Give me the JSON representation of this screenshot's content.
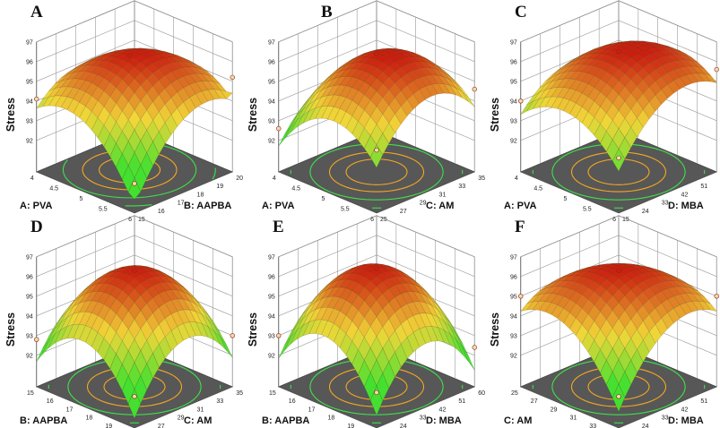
{
  "colors": {
    "floor": "#575757",
    "surface_low": "#43e030",
    "surface_mid": "#f2d638",
    "surface_high": "#cc1e10",
    "contour_green": "#3fe04a",
    "contour_orange": "#f5a81f",
    "contour_red": "#d92a1f"
  },
  "chart_data": [
    {
      "panel": "A",
      "type": "surface",
      "zlabel": "Stress",
      "zticks": [
        "92",
        "93",
        "94",
        "95",
        "96",
        "97"
      ],
      "zlim": [
        92,
        97
      ],
      "xlabel": "A:  PVA",
      "xticks": [
        "4",
        "4.5",
        "5",
        "5.5",
        "6"
      ],
      "ylabel": "B:  AAPBA",
      "yticks": [
        "15",
        "16",
        "17",
        "18",
        "19",
        "20"
      ],
      "peak": 96.2,
      "corners": [
        94.1,
        91.9,
        95.2,
        93.0
      ],
      "center": [
        0.55,
        0.5
      ]
    },
    {
      "panel": "B",
      "type": "surface",
      "zlabel": "Stress",
      "zticks": [
        "92",
        "93",
        "94",
        "95",
        "96",
        "97"
      ],
      "zlim": [
        92,
        97
      ],
      "xlabel": "A:  PVA",
      "xticks": [
        "4",
        "4.5",
        "5",
        "5.5",
        "6"
      ],
      "ylabel": "C:  AM",
      "yticks": [
        "25",
        "27",
        "29",
        "31",
        "33",
        "35"
      ],
      "peak": 96.4,
      "corners": [
        92.6,
        93.6,
        94.6,
        93.0
      ],
      "center": [
        0.5,
        0.5
      ]
    },
    {
      "panel": "C",
      "type": "surface",
      "zlabel": "Stress",
      "zticks": [
        "92",
        "93",
        "94",
        "95",
        "96",
        "97"
      ],
      "zlim": [
        92,
        97
      ],
      "xlabel": "A:  PVA",
      "xticks": [
        "4",
        "4.5",
        "5",
        "5.5",
        "6"
      ],
      "ylabel": "D:  MBA",
      "yticks": [
        "15",
        "24",
        "33",
        "42",
        "51",
        "60"
      ],
      "peak": 96.5,
      "corners": [
        94.0,
        93.2,
        95.6,
        94.2
      ],
      "center": [
        0.5,
        0.5
      ]
    },
    {
      "panel": "D",
      "type": "surface",
      "zlabel": "Stress",
      "zticks": [
        "92",
        "93",
        "94",
        "95",
        "96",
        "97"
      ],
      "zlim": [
        92,
        97
      ],
      "xlabel": "B:  AAPBA",
      "xticks": [
        "15",
        "16",
        "17",
        "18",
        "19",
        "20"
      ],
      "ylabel": "C:  AM",
      "yticks": [
        "25",
        "27",
        "29",
        "31",
        "33",
        "35"
      ],
      "peak": 96.3,
      "corners": [
        92.8,
        92.0,
        93.0,
        92.5
      ],
      "center": [
        0.5,
        0.5
      ]
    },
    {
      "panel": "E",
      "type": "surface",
      "zlabel": "Stress",
      "zticks": [
        "92",
        "93",
        "94",
        "95",
        "96",
        "97"
      ],
      "zlim": [
        92,
        97
      ],
      "xlabel": "B:  AAPBA",
      "xticks": [
        "15",
        "16",
        "17",
        "18",
        "19",
        "20"
      ],
      "ylabel": "D:  MBA",
      "yticks": [
        "15",
        "24",
        "33",
        "42",
        "51",
        "60"
      ],
      "peak": 96.4,
      "corners": [
        93.0,
        92.2,
        92.4,
        92.6
      ],
      "center": [
        0.5,
        0.5
      ]
    },
    {
      "panel": "F",
      "type": "surface",
      "zlabel": "Stress",
      "zticks": [
        "92",
        "93",
        "94",
        "95",
        "96",
        "97"
      ],
      "zlim": [
        92,
        97
      ],
      "xlabel": "C:  AM",
      "xticks": [
        "25",
        "27",
        "29",
        "31",
        "33",
        "35"
      ],
      "ylabel": "D:  MBA",
      "yticks": [
        "15",
        "24",
        "33",
        "42",
        "51",
        "60"
      ],
      "peak": 96.3,
      "corners": [
        95.0,
        92.0,
        95.0,
        93.0
      ],
      "center": [
        0.5,
        0.5
      ]
    }
  ]
}
